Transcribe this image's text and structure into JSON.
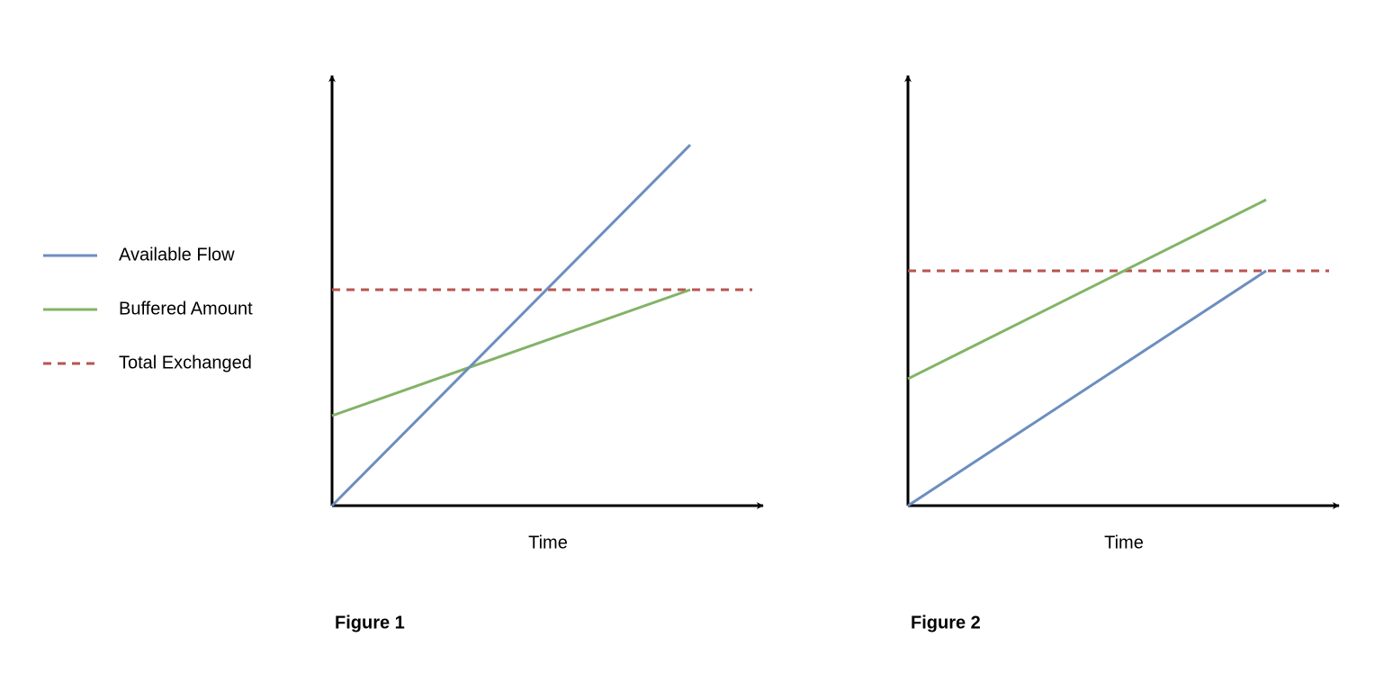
{
  "legend": [
    {
      "label": "Available Flow"
    },
    {
      "label": "Buffered Amount"
    },
    {
      "label": "Total Exchanged"
    }
  ],
  "figures": [
    {
      "x_label": "Time",
      "caption": "Figure 1"
    },
    {
      "x_label": "Time",
      "caption": "Figure 2"
    }
  ]
}
